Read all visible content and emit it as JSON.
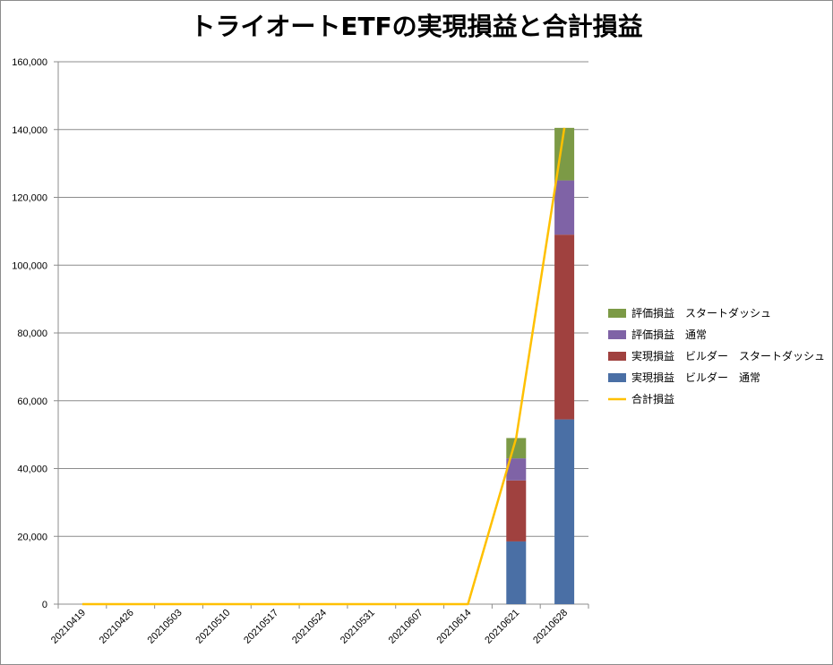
{
  "chart_data": {
    "type": "bar",
    "stacked": true,
    "title": "トライオートETFの実現損益と合計損益",
    "categories": [
      "20210419",
      "20210426",
      "20210503",
      "20210510",
      "20210517",
      "20210524",
      "20210531",
      "20210607",
      "20210614",
      "20210621",
      "20210628"
    ],
    "ylim": [
      0,
      160000
    ],
    "yticks": [
      "0",
      "20,000",
      "40,000",
      "60,000",
      "80,000",
      "100,000",
      "120,000",
      "140,000",
      "160,000"
    ],
    "ytick_values": [
      0,
      20000,
      40000,
      60000,
      80000,
      100000,
      120000,
      140000,
      160000
    ],
    "grid": true,
    "legend_position": "right",
    "series": [
      {
        "name": "実現損益 ビルダー 通常",
        "color": "#4a6fa5",
        "values": [
          0,
          0,
          0,
          0,
          0,
          0,
          0,
          0,
          0,
          18500,
          54500
        ]
      },
      {
        "name": "実現損益 ビルダー スタートダッシュ",
        "color": "#a0413f",
        "values": [
          0,
          0,
          0,
          0,
          0,
          0,
          0,
          0,
          0,
          18000,
          54500
        ]
      },
      {
        "name": "評価損益 通常",
        "color": "#7f63a6",
        "values": [
          0,
          0,
          0,
          0,
          0,
          0,
          0,
          0,
          0,
          6500,
          16000
        ]
      },
      {
        "name": "評価損益 スタートダッシュ",
        "color": "#7c9a46",
        "values": [
          0,
          0,
          0,
          0,
          0,
          0,
          0,
          0,
          0,
          6000,
          15500
        ]
      }
    ],
    "line": {
      "name": "合計損益",
      "color": "#ffc000",
      "values": [
        0,
        0,
        0,
        0,
        0,
        0,
        0,
        0,
        0,
        49000,
        140500
      ]
    },
    "legend_order": [
      "評価損益 スタートダッシュ",
      "評価損益 通常",
      "実現損益 ビルダー スタートダッシュ",
      "実現損益 ビルダー 通常",
      "合計損益"
    ],
    "legend_labels": [
      "評価損益　スタートダッシュ",
      "評価損益　通常",
      "実現損益　ビルダー　スタートダッシュ",
      "実現損益　ビルダー　通常",
      "合計損益"
    ]
  }
}
